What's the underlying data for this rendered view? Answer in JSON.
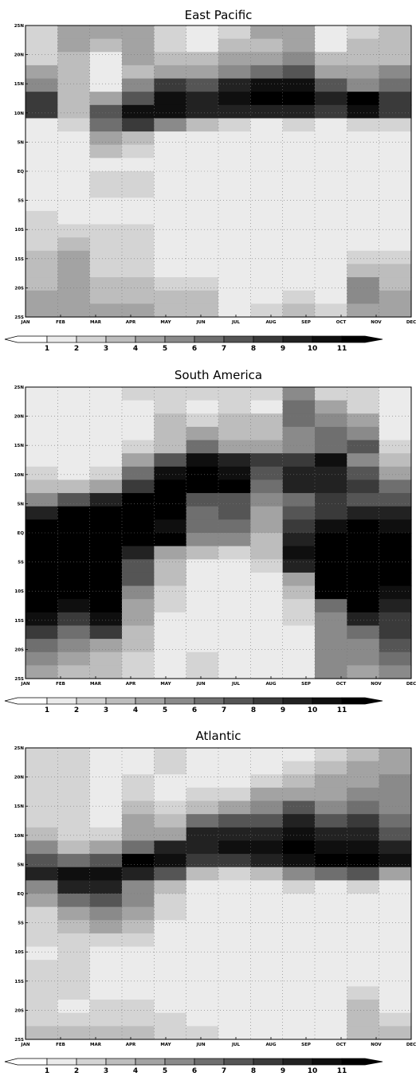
{
  "chart_data": [
    {
      "type": "heatmap",
      "title": "East Pacific",
      "x_categories": [
        "JAN",
        "FEB",
        "MAR",
        "APR",
        "MAY",
        "JUN",
        "JUL",
        "AUG",
        "SEP",
        "OCT",
        "NOV",
        "DEC"
      ],
      "y_tick_labels": [
        "25N",
        "20N",
        "15N",
        "10N",
        "5N",
        "EQ",
        "5S",
        "10S",
        "15S",
        "20S",
        "25S"
      ],
      "y_range": [
        25,
        -25
      ],
      "grid": true,
      "colorbar_labels": [
        "1",
        "2",
        "3",
        "4",
        "5",
        "6",
        "7",
        "8",
        "9",
        "10",
        "11"
      ],
      "rows": [
        [
          2,
          4,
          4,
          4,
          2,
          1,
          2,
          4,
          4,
          1,
          2,
          3
        ],
        [
          2,
          4,
          3,
          4,
          2,
          1,
          3,
          3,
          4,
          1,
          3,
          3
        ],
        [
          2,
          3,
          1,
          4,
          3,
          3,
          4,
          4,
          5,
          3,
          3,
          3
        ],
        [
          4,
          3,
          1,
          3,
          4,
          4,
          5,
          6,
          7,
          4,
          4,
          5
        ],
        [
          5,
          3,
          1,
          5,
          8,
          7,
          9,
          10,
          10,
          7,
          5,
          6
        ],
        [
          8,
          3,
          4,
          7,
          10,
          9,
          10,
          11,
          11,
          9,
          11,
          8
        ],
        [
          8,
          3,
          7,
          10,
          10,
          9,
          9,
          9,
          9,
          8,
          10,
          8
        ],
        [
          1,
          2,
          6,
          8,
          5,
          3,
          2,
          1,
          2,
          1,
          2,
          2
        ],
        [
          1,
          1,
          4,
          3,
          1,
          1,
          1,
          1,
          1,
          1,
          1,
          1
        ],
        [
          1,
          1,
          3,
          2,
          1,
          1,
          1,
          1,
          1,
          1,
          1,
          1
        ],
        [
          1,
          1,
          1,
          1,
          1,
          1,
          1,
          1,
          1,
          1,
          1,
          1
        ],
        [
          1,
          1,
          2,
          2,
          1,
          1,
          1,
          1,
          1,
          1,
          1,
          1
        ],
        [
          1,
          1,
          2,
          2,
          1,
          1,
          1,
          1,
          1,
          1,
          1,
          1
        ],
        [
          1,
          1,
          1,
          1,
          1,
          1,
          1,
          1,
          1,
          1,
          1,
          1
        ],
        [
          2,
          1,
          1,
          1,
          1,
          1,
          1,
          1,
          1,
          1,
          1,
          1
        ],
        [
          2,
          2,
          2,
          2,
          1,
          1,
          1,
          1,
          1,
          1,
          1,
          1
        ],
        [
          2,
          3,
          2,
          2,
          1,
          1,
          1,
          1,
          1,
          1,
          1,
          1
        ],
        [
          3,
          4,
          2,
          2,
          1,
          1,
          1,
          1,
          1,
          1,
          2,
          2
        ],
        [
          3,
          4,
          2,
          2,
          1,
          1,
          1,
          1,
          1,
          1,
          3,
          3
        ],
        [
          3,
          4,
          3,
          3,
          2,
          2,
          1,
          1,
          1,
          1,
          5,
          3
        ],
        [
          4,
          4,
          3,
          3,
          3,
          3,
          1,
          1,
          2,
          1,
          5,
          4
        ],
        [
          4,
          4,
          4,
          4,
          3,
          3,
          1,
          2,
          3,
          2,
          4,
          4
        ]
      ]
    },
    {
      "type": "heatmap",
      "title": "South America",
      "x_categories": [
        "JAN",
        "FEB",
        "MAR",
        "APR",
        "MAY",
        "JUN",
        "JUL",
        "AUG",
        "SEP",
        "OCT",
        "NOV",
        "DEC"
      ],
      "y_tick_labels": [
        "25N",
        "20N",
        "15N",
        "10N",
        "5N",
        "EQ",
        "5S",
        "10S",
        "15S",
        "20S",
        "25S"
      ],
      "y_range": [
        25,
        -25
      ],
      "grid": true,
      "colorbar_labels": [
        "1",
        "2",
        "3",
        "4",
        "5",
        "6",
        "7",
        "8",
        "9",
        "10",
        "11"
      ],
      "rows": [
        [
          1,
          1,
          1,
          2,
          2,
          2,
          2,
          2,
          5,
          2,
          2,
          1
        ],
        [
          1,
          1,
          1,
          1,
          2,
          1,
          2,
          1,
          6,
          4,
          2,
          1
        ],
        [
          1,
          1,
          1,
          1,
          3,
          2,
          3,
          3,
          6,
          5,
          4,
          1
        ],
        [
          1,
          1,
          1,
          1,
          3,
          4,
          3,
          3,
          5,
          6,
          5,
          1
        ],
        [
          1,
          1,
          1,
          2,
          3,
          6,
          4,
          4,
          5,
          6,
          7,
          2
        ],
        [
          1,
          1,
          1,
          4,
          7,
          10,
          9,
          8,
          8,
          10,
          5,
          3
        ],
        [
          2,
          1,
          2,
          6,
          10,
          11,
          10,
          7,
          9,
          9,
          7,
          4
        ],
        [
          3,
          3,
          4,
          8,
          11,
          11,
          11,
          6,
          9,
          9,
          8,
          6
        ],
        [
          5,
          7,
          9,
          11,
          11,
          7,
          7,
          5,
          6,
          8,
          7,
          7
        ],
        [
          9,
          11,
          11,
          11,
          11,
          6,
          7,
          4,
          7,
          8,
          9,
          9
        ],
        [
          11,
          11,
          11,
          11,
          10,
          6,
          6,
          4,
          8,
          10,
          11,
          10
        ],
        [
          11,
          11,
          11,
          11,
          11,
          5,
          5,
          3,
          9,
          11,
          11,
          11
        ],
        [
          11,
          11,
          11,
          9,
          4,
          3,
          2,
          3,
          10,
          11,
          11,
          11
        ],
        [
          11,
          11,
          11,
          7,
          3,
          1,
          1,
          2,
          9,
          11,
          11,
          11
        ],
        [
          11,
          11,
          11,
          7,
          3,
          1,
          1,
          1,
          4,
          11,
          11,
          11
        ],
        [
          11,
          11,
          11,
          5,
          2,
          1,
          1,
          1,
          3,
          11,
          11,
          10
        ],
        [
          11,
          10,
          11,
          4,
          2,
          1,
          1,
          1,
          2,
          6,
          11,
          9
        ],
        [
          10,
          8,
          10,
          4,
          1,
          1,
          1,
          1,
          2,
          5,
          9,
          8
        ],
        [
          8,
          6,
          8,
          3,
          1,
          1,
          1,
          1,
          1,
          5,
          6,
          8
        ],
        [
          6,
          5,
          4,
          3,
          1,
          1,
          1,
          1,
          1,
          5,
          5,
          7
        ],
        [
          5,
          4,
          3,
          2,
          1,
          2,
          1,
          1,
          1,
          5,
          5,
          6
        ],
        [
          4,
          3,
          3,
          2,
          1,
          2,
          1,
          1,
          1,
          5,
          4,
          5
        ]
      ]
    },
    {
      "type": "heatmap",
      "title": "Atlantic",
      "x_categories": [
        "JAN",
        "FEB",
        "MAR",
        "APR",
        "MAY",
        "JUN",
        "JUL",
        "AUG",
        "SEP",
        "OCT",
        "NOV",
        "DEC"
      ],
      "y_tick_labels": [
        "25N",
        "20N",
        "15N",
        "10N",
        "5N",
        "EQ",
        "5S",
        "10S",
        "15S",
        "20S",
        "25S"
      ],
      "y_range": [
        25,
        -25
      ],
      "grid": true,
      "colorbar_labels": [
        "1",
        "2",
        "3",
        "4",
        "5",
        "6",
        "7",
        "8",
        "9",
        "10",
        "11"
      ],
      "rows": [
        [
          2,
          2,
          1,
          1,
          2,
          1,
          1,
          1,
          1,
          2,
          3,
          4
        ],
        [
          2,
          2,
          1,
          1,
          2,
          1,
          1,
          1,
          2,
          3,
          4,
          4
        ],
        [
          2,
          2,
          1,
          2,
          1,
          1,
          1,
          2,
          3,
          4,
          4,
          5
        ],
        [
          2,
          2,
          1,
          2,
          1,
          2,
          2,
          4,
          4,
          4,
          5,
          5
        ],
        [
          2,
          2,
          1,
          3,
          2,
          3,
          4,
          5,
          7,
          5,
          6,
          5
        ],
        [
          2,
          2,
          1,
          4,
          3,
          6,
          7,
          7,
          9,
          7,
          8,
          6
        ],
        [
          3,
          2,
          2,
          4,
          4,
          9,
          9,
          9,
          10,
          9,
          9,
          7
        ],
        [
          5,
          3,
          4,
          6,
          9,
          9,
          10,
          10,
          11,
          10,
          10,
          9
        ],
        [
          7,
          6,
          7,
          11,
          10,
          8,
          8,
          9,
          10,
          11,
          11,
          10
        ],
        [
          9,
          10,
          10,
          9,
          7,
          3,
          2,
          3,
          5,
          6,
          7,
          4
        ],
        [
          5,
          9,
          9,
          5,
          3,
          1,
          1,
          1,
          2,
          1,
          2,
          1
        ],
        [
          4,
          6,
          7,
          5,
          2,
          1,
          1,
          1,
          1,
          1,
          1,
          1
        ],
        [
          2,
          4,
          5,
          4,
          2,
          1,
          1,
          1,
          1,
          1,
          1,
          1
        ],
        [
          2,
          3,
          4,
          3,
          1,
          1,
          1,
          1,
          1,
          1,
          1,
          1
        ],
        [
          2,
          2,
          2,
          2,
          1,
          1,
          1,
          1,
          1,
          1,
          1,
          1
        ],
        [
          1,
          2,
          1,
          1,
          1,
          1,
          1,
          1,
          1,
          1,
          1,
          1
        ],
        [
          2,
          2,
          1,
          1,
          1,
          1,
          1,
          1,
          1,
          1,
          1,
          1
        ],
        [
          2,
          2,
          1,
          1,
          1,
          1,
          1,
          1,
          1,
          1,
          1,
          1
        ],
        [
          2,
          2,
          1,
          1,
          1,
          1,
          1,
          1,
          1,
          1,
          2,
          1
        ],
        [
          2,
          1,
          2,
          2,
          1,
          1,
          1,
          1,
          1,
          1,
          3,
          1
        ],
        [
          2,
          2,
          2,
          2,
          2,
          1,
          1,
          1,
          1,
          1,
          3,
          2
        ],
        [
          3,
          3,
          3,
          3,
          2,
          2,
          1,
          1,
          1,
          1,
          3,
          3
        ]
      ]
    }
  ]
}
